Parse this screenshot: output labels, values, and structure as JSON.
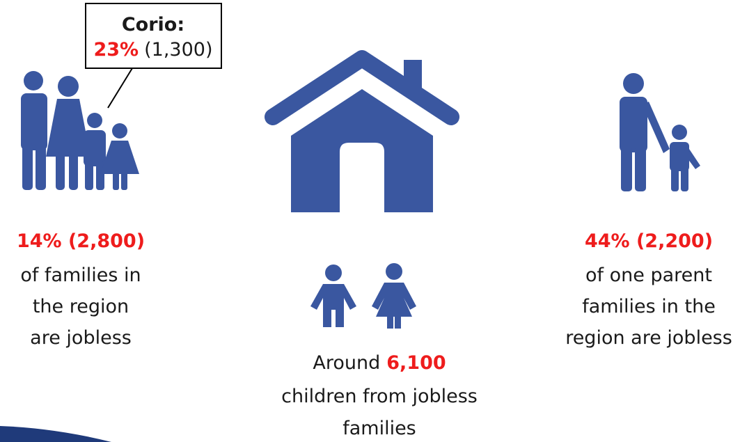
{
  "callout": {
    "label": "Corio:",
    "percent": "23%",
    "count": "(1,300)"
  },
  "left": {
    "headline": "14% (2,800)",
    "lines": [
      "of families in",
      "the region",
      "are jobless"
    ]
  },
  "center": {
    "prefix": "Around",
    "number": "6,100",
    "lines": [
      "children from jobless",
      "families"
    ]
  },
  "right": {
    "headline": "44% (2,200)",
    "lines": [
      "of one parent",
      "families in the",
      "region are jobless"
    ]
  }
}
